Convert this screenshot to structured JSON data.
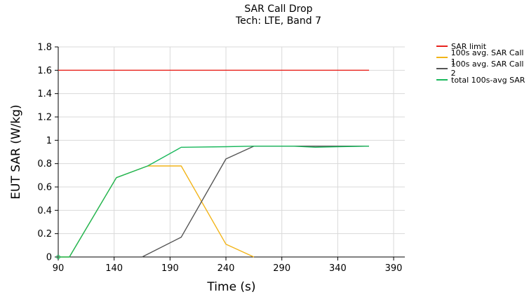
{
  "chart_data": {
    "type": "line",
    "title": "SAR Call Drop",
    "subtitle": "Tech: LTE, Band 7",
    "xlabel": "Time (s)",
    "ylabel": "EUT SAR (W/kg)",
    "xlim": [
      90,
      400
    ],
    "ylim": [
      0,
      1.8
    ],
    "x_ticks": [
      "90",
      "140",
      "190",
      "240",
      "290",
      "340",
      "390"
    ],
    "y_ticks": [
      "0",
      "0.2",
      "0.4",
      "0.6",
      "0.8",
      "1",
      "1.2",
      "1.4",
      "1.6",
      "1.8"
    ],
    "grid": true,
    "legend_position": "top-right",
    "series": [
      {
        "name": "SAR limit",
        "color": "#e8231d",
        "x": [
          90,
          368
        ],
        "y": [
          1.6,
          1.6
        ]
      },
      {
        "name": "100s avg. SAR Call 1",
        "color": "#f2b418",
        "x": [
          90,
          100,
          142,
          170,
          200,
          240,
          265
        ],
        "y": [
          0.0,
          0.0,
          0.68,
          0.78,
          0.78,
          0.11,
          0.0
        ]
      },
      {
        "name": "100s avg. SAR Call 2",
        "color": "#555555",
        "x": [
          165,
          200,
          240,
          265,
          300,
          368
        ],
        "y": [
          0.0,
          0.17,
          0.84,
          0.95,
          0.95,
          0.95
        ]
      },
      {
        "name": "total 100s-avg SAR",
        "color": "#1ab85c",
        "x": [
          90,
          100,
          142,
          170,
          200,
          202,
          240,
          265,
          300,
          320,
          340,
          368
        ],
        "y": [
          0.0,
          0.0,
          0.68,
          0.78,
          0.94,
          0.94,
          0.945,
          0.95,
          0.95,
          0.94,
          0.945,
          0.95
        ]
      }
    ]
  }
}
